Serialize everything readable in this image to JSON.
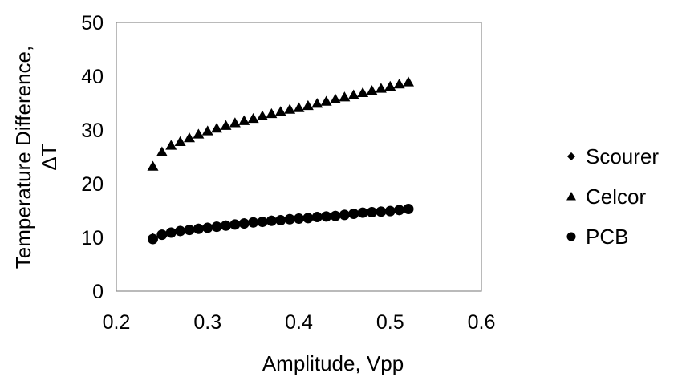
{
  "chart_data": {
    "type": "scatter",
    "title": "",
    "xlabel": "Amplitude, Vpp",
    "ylabel_lines": [
      "Temperature Difference,",
      "ΔT"
    ],
    "xlim": [
      0.2,
      0.6
    ],
    "ylim": [
      0,
      50
    ],
    "xticks": [
      "0.2",
      "0.3",
      "0.4",
      "0.5",
      "0.6"
    ],
    "yticks": [
      "0",
      "10",
      "20",
      "30",
      "40",
      "50"
    ],
    "grid": false,
    "legend_position": "right",
    "x": [
      0.24,
      0.25,
      0.26,
      0.27,
      0.28,
      0.29,
      0.3,
      0.31,
      0.32,
      0.33,
      0.34,
      0.35,
      0.36,
      0.37,
      0.38,
      0.39,
      0.4,
      0.41,
      0.42,
      0.43,
      0.44,
      0.45,
      0.46,
      0.47,
      0.48,
      0.49,
      0.5,
      0.51,
      0.52
    ],
    "series": [
      {
        "name": "Scourer",
        "marker": "diamond",
        "color": "#000000",
        "values": [
          9.9,
          10.6,
          11.0,
          11.3,
          11.5,
          11.7,
          11.9,
          12.1,
          12.3,
          12.5,
          12.7,
          12.9,
          13.0,
          13.2,
          13.3,
          13.5,
          13.6,
          13.7,
          13.9,
          14.0,
          14.1,
          14.3,
          14.5,
          14.7,
          14.8,
          14.9,
          15.0,
          15.2,
          15.4
        ]
      },
      {
        "name": "Celcor",
        "marker": "triangle",
        "color": "#000000",
        "values": [
          23.2,
          25.9,
          27.1,
          27.8,
          28.5,
          29.2,
          29.8,
          30.3,
          30.8,
          31.3,
          31.7,
          32.1,
          32.6,
          33.0,
          33.4,
          33.8,
          34.1,
          34.5,
          34.9,
          35.3,
          35.7,
          36.1,
          36.5,
          36.9,
          37.3,
          37.7,
          38.1,
          38.5,
          38.9
        ]
      },
      {
        "name": "PCB",
        "marker": "circle",
        "color": "#000000",
        "values": [
          9.7,
          10.5,
          10.9,
          11.2,
          11.4,
          11.6,
          11.8,
          12.0,
          12.2,
          12.4,
          12.6,
          12.8,
          12.9,
          13.1,
          13.2,
          13.4,
          13.5,
          13.6,
          13.8,
          13.9,
          14.0,
          14.2,
          14.4,
          14.6,
          14.7,
          14.8,
          14.9,
          15.1,
          15.3
        ]
      }
    ]
  }
}
